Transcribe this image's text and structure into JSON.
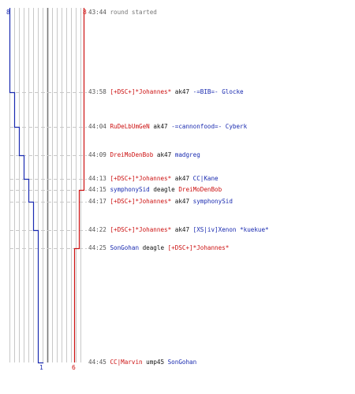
{
  "colors": {
    "team_blue": "#1a2bb0",
    "team_red": "#cc1111",
    "grid": "#c8c8c8",
    "center": "#777777",
    "dash": "#c8c8c8"
  },
  "teams": {
    "blue": {
      "start_count": "8",
      "end_count": "1"
    },
    "red": {
      "start_count": "8",
      "end_count": "6"
    }
  },
  "events": [
    {
      "time": "43:44",
      "message": "round started"
    },
    {
      "time": "43:58",
      "killer": "[+DSC+]*Johannes*",
      "killer_team": "red",
      "weapon": "ak47",
      "victim": "-=BIB=- Glocke",
      "victim_team": "blue",
      "blue_alive": 7,
      "red_alive": 8
    },
    {
      "time": "44:04",
      "killer": "RuDeLbUmGeN",
      "killer_team": "red",
      "weapon": "ak47",
      "victim": "-=cannonfood=- Cyberk",
      "victim_team": "blue",
      "blue_alive": 6,
      "red_alive": 8
    },
    {
      "time": "44:09",
      "killer": "DreiMoDenBob",
      "killer_team": "red",
      "weapon": "ak47",
      "victim": "madgreg",
      "victim_team": "blue",
      "blue_alive": 5,
      "red_alive": 8
    },
    {
      "time": "44:13",
      "killer": "[+DSC+]*Johannes*",
      "killer_team": "red",
      "weapon": "ak47",
      "victim": "CC|Kane",
      "victim_team": "blue",
      "blue_alive": 4,
      "red_alive": 8
    },
    {
      "time": "44:15",
      "killer": "symphonySid",
      "killer_team": "blue",
      "weapon": "deagle",
      "victim": "DreiMoDenBob",
      "victim_team": "red",
      "blue_alive": 4,
      "red_alive": 7
    },
    {
      "time": "44:17",
      "killer": "[+DSC+]*Johannes*",
      "killer_team": "red",
      "weapon": "ak47",
      "victim": "symphonySid",
      "victim_team": "blue",
      "blue_alive": 3,
      "red_alive": 7
    },
    {
      "time": "44:22",
      "killer": "[+DSC+]*Johannes*",
      "killer_team": "red",
      "weapon": "ak47",
      "victim": "[XS|iv]Xenon *kuekue*",
      "victim_team": "blue",
      "blue_alive": 2,
      "red_alive": 7
    },
    {
      "time": "44:25",
      "killer": "SonGohan",
      "killer_team": "blue",
      "weapon": "deagle",
      "victim": "[+DSC+]*Johannes*",
      "victim_team": "red",
      "blue_alive": 2,
      "red_alive": 6
    },
    {
      "time": "44:45",
      "killer": "CC|Marvin",
      "killer_team": "red",
      "weapon": "ump45",
      "victim": "SonGohan",
      "victim_team": "blue",
      "blue_alive": 1,
      "red_alive": 6
    }
  ]
}
